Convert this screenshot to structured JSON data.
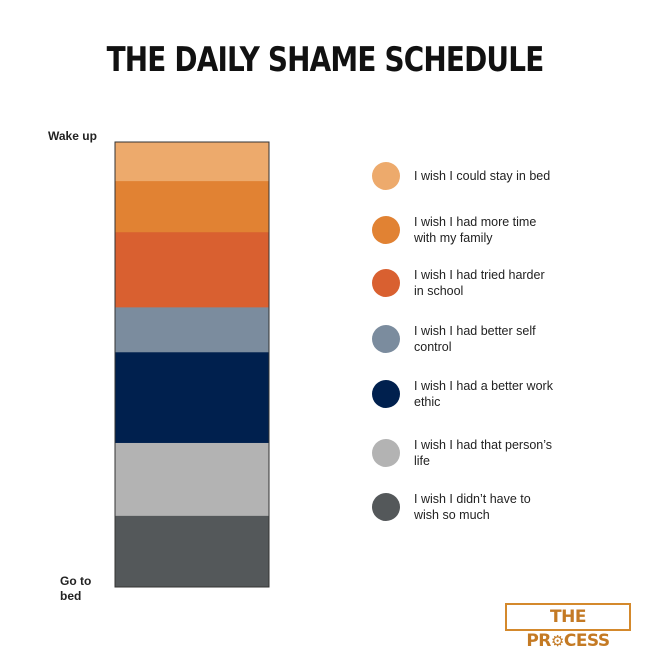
{
  "chart_data": {
    "type": "bar",
    "stacked": true,
    "orientation": "vertical",
    "title": "THE DAILY SHAME SCHEDULE",
    "top_label": "Wake up",
    "bottom_label": "Go to bed",
    "legend_placement": "right",
    "grid": false,
    "series": [
      {
        "name": "I wish I could stay in bed",
        "value": 8.8,
        "color": "#edaa6c"
      },
      {
        "name": "I wish I had more time with my family",
        "value": 11.5,
        "color": "#e18233"
      },
      {
        "name": "I wish I had tried harder in school",
        "value": 16.9,
        "color": "#d96030"
      },
      {
        "name": "I wish I had better self control",
        "value": 10.1,
        "color": "#7b8c9e"
      },
      {
        "name": "I wish I had a better work ethic",
        "value": 20.4,
        "color": "#00204e"
      },
      {
        "name": "I wish I had that person’s life",
        "value": 16.4,
        "color": "#b3b3b3"
      },
      {
        "name": "I wish I didn’t have to wish so much",
        "value": 16.0,
        "color": "#54585a"
      }
    ]
  },
  "logo": {
    "text": "THE PROCESS",
    "color": "#d4892c"
  }
}
